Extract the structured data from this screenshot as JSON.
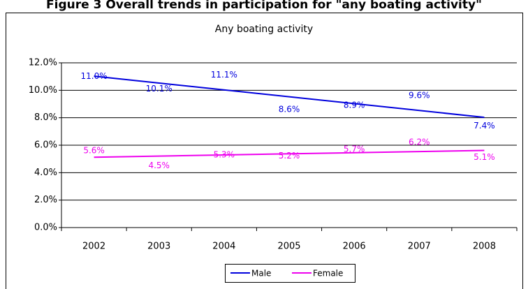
{
  "heading": "Figure 3 Overall trends in participation for \"any boating activity\"",
  "chart_data": {
    "type": "line",
    "title": "Any boating activity",
    "categories": [
      "2002",
      "2003",
      "2004",
      "2005",
      "2006",
      "2007",
      "2008"
    ],
    "series": [
      {
        "name": "Male",
        "color": "#0000dd",
        "values": [
          11.0,
          10.1,
          11.1,
          8.6,
          8.9,
          9.6,
          7.4
        ],
        "value_labels": [
          "11.0%",
          "10.1%",
          "11.1%",
          "8.6%",
          "8.9%",
          "9.6%",
          "7.4%"
        ]
      },
      {
        "name": "Female",
        "color": "#ee00ee",
        "values": [
          5.6,
          4.5,
          5.3,
          5.2,
          5.7,
          6.2,
          5.1
        ],
        "value_labels": [
          "5.6%",
          "4.5%",
          "5.3%",
          "5.2%",
          "5.7%",
          "6.2%",
          "5.1%"
        ]
      }
    ],
    "trendline": "linear",
    "ylim": [
      0,
      12
    ],
    "yticks": [
      {
        "value": 0,
        "label": "0.0%"
      },
      {
        "value": 2,
        "label": "2.0%"
      },
      {
        "value": 4,
        "label": "4.0%"
      },
      {
        "value": 6,
        "label": "6.0%"
      },
      {
        "value": 8,
        "label": "8.0%"
      },
      {
        "value": 10,
        "label": "10.0%"
      },
      {
        "value": 12,
        "label": "12.0%"
      }
    ],
    "grid": true,
    "legend": "bottom"
  }
}
